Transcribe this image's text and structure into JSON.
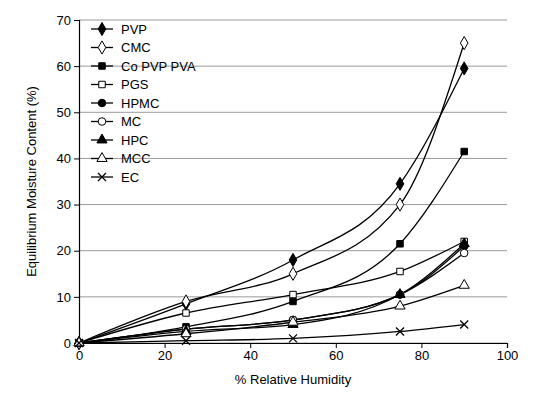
{
  "chart_data": {
    "type": "line",
    "x_label": "% Relative Humidity",
    "y_label": "Equilibrium Moisture Content (%)",
    "x": [
      0,
      25,
      50,
      75,
      90
    ],
    "xlim": [
      0,
      100
    ],
    "xticks": [
      0,
      20,
      40,
      60,
      80,
      100
    ],
    "ylim": [
      0,
      70
    ],
    "yticks": [
      0,
      10,
      20,
      30,
      40,
      50,
      60,
      70
    ],
    "grid": true,
    "legend": "upper-left",
    "series": [
      {
        "name": "PVP",
        "color": "#000000",
        "marker": "diamond",
        "values": [
          0,
          8.5,
          18,
          34.5,
          59.5
        ]
      },
      {
        "name": "CMC",
        "color": "#000000",
        "marker": "diamond-open",
        "values": [
          0,
          9,
          15,
          30,
          65
        ]
      },
      {
        "name": "Co PVP PVA",
        "color": "#000000",
        "marker": "square",
        "values": [
          0,
          3.5,
          9,
          21.5,
          41.5
        ]
      },
      {
        "name": "PGS",
        "color": "#000000",
        "marker": "square-open",
        "values": [
          0,
          6.5,
          10.5,
          15.5,
          22
        ]
      },
      {
        "name": "HPMC",
        "color": "#000000",
        "marker": "circle",
        "values": [
          0,
          3,
          5,
          10.5,
          21
        ]
      },
      {
        "name": "MC",
        "color": "#000000",
        "marker": "circle-open",
        "values": [
          0,
          3,
          5,
          10.5,
          19.5
        ]
      },
      {
        "name": "HPC",
        "color": "#000000",
        "marker": "triangle",
        "values": [
          0,
          2.5,
          4,
          10.5,
          21.5
        ]
      },
      {
        "name": "MCC",
        "color": "#000000",
        "marker": "triangle-open",
        "values": [
          0,
          2,
          4.5,
          8,
          12.5
        ]
      },
      {
        "name": "EC",
        "color": "#000000",
        "marker": "cross",
        "values": [
          0,
          0.5,
          1,
          2.5,
          4
        ]
      }
    ]
  }
}
